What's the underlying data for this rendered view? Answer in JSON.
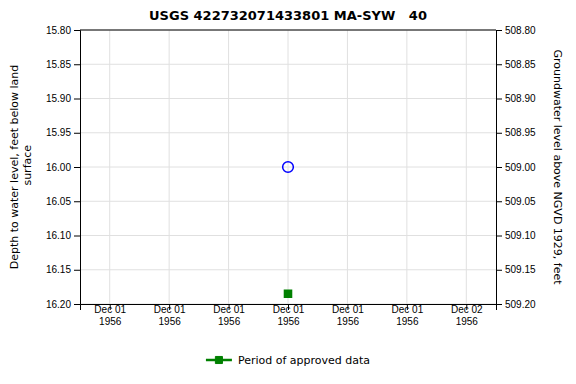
{
  "chart_data": {
    "type": "scatter",
    "title": "USGS 422732071433801 MA-SYW   40",
    "ylabel": "Depth to water level, feet below land\n surface",
    "y2label": "Groundwater level above NGVD 1929, feet",
    "categories": [
      "Dec 01\n1956",
      "Dec 01\n1956",
      "Dec 01\n1956",
      "Dec 01\n1956",
      "Dec 01\n1956",
      "Dec 01\n1956",
      "Dec 02\n1956"
    ],
    "series": [
      {
        "color": "#0000ff",
        "marker": "open-circle",
        "values": [
          null,
          null,
          null,
          16.0,
          null,
          null,
          null
        ]
      },
      {
        "name": "Period of approved data",
        "color": "#008000",
        "marker": "square",
        "values": [
          null,
          null,
          null,
          16.185,
          null,
          null,
          null
        ]
      }
    ],
    "ylim": [
      16.2,
      15.8
    ],
    "yticks": [
      {
        "value": 15.8,
        "label": "15.80"
      },
      {
        "value": 15.85,
        "label": "15.85"
      },
      {
        "value": 15.9,
        "label": "15.90"
      },
      {
        "value": 15.95,
        "label": "15.95"
      },
      {
        "value": 16.0,
        "label": "16.00"
      },
      {
        "value": 16.05,
        "label": "16.05"
      },
      {
        "value": 16.1,
        "label": "16.10"
      },
      {
        "value": 16.15,
        "label": "16.15"
      },
      {
        "value": 16.2,
        "label": "16.20"
      }
    ],
    "y2lim": [
      509.2,
      508.8
    ],
    "y2ticks": [
      {
        "value": 509.2,
        "label": "509.20"
      },
      {
        "value": 509.15,
        "label": "509.15"
      },
      {
        "value": 509.1,
        "label": "509.10"
      },
      {
        "value": 509.05,
        "label": "509.05"
      },
      {
        "value": 509.0,
        "label": "509.00"
      },
      {
        "value": 508.95,
        "label": "508.95"
      },
      {
        "value": 508.9,
        "label": "508.90"
      },
      {
        "value": 508.85,
        "label": "508.85"
      },
      {
        "value": 508.8,
        "label": "508.80"
      }
    ],
    "grid": true,
    "legend": "bottom"
  }
}
